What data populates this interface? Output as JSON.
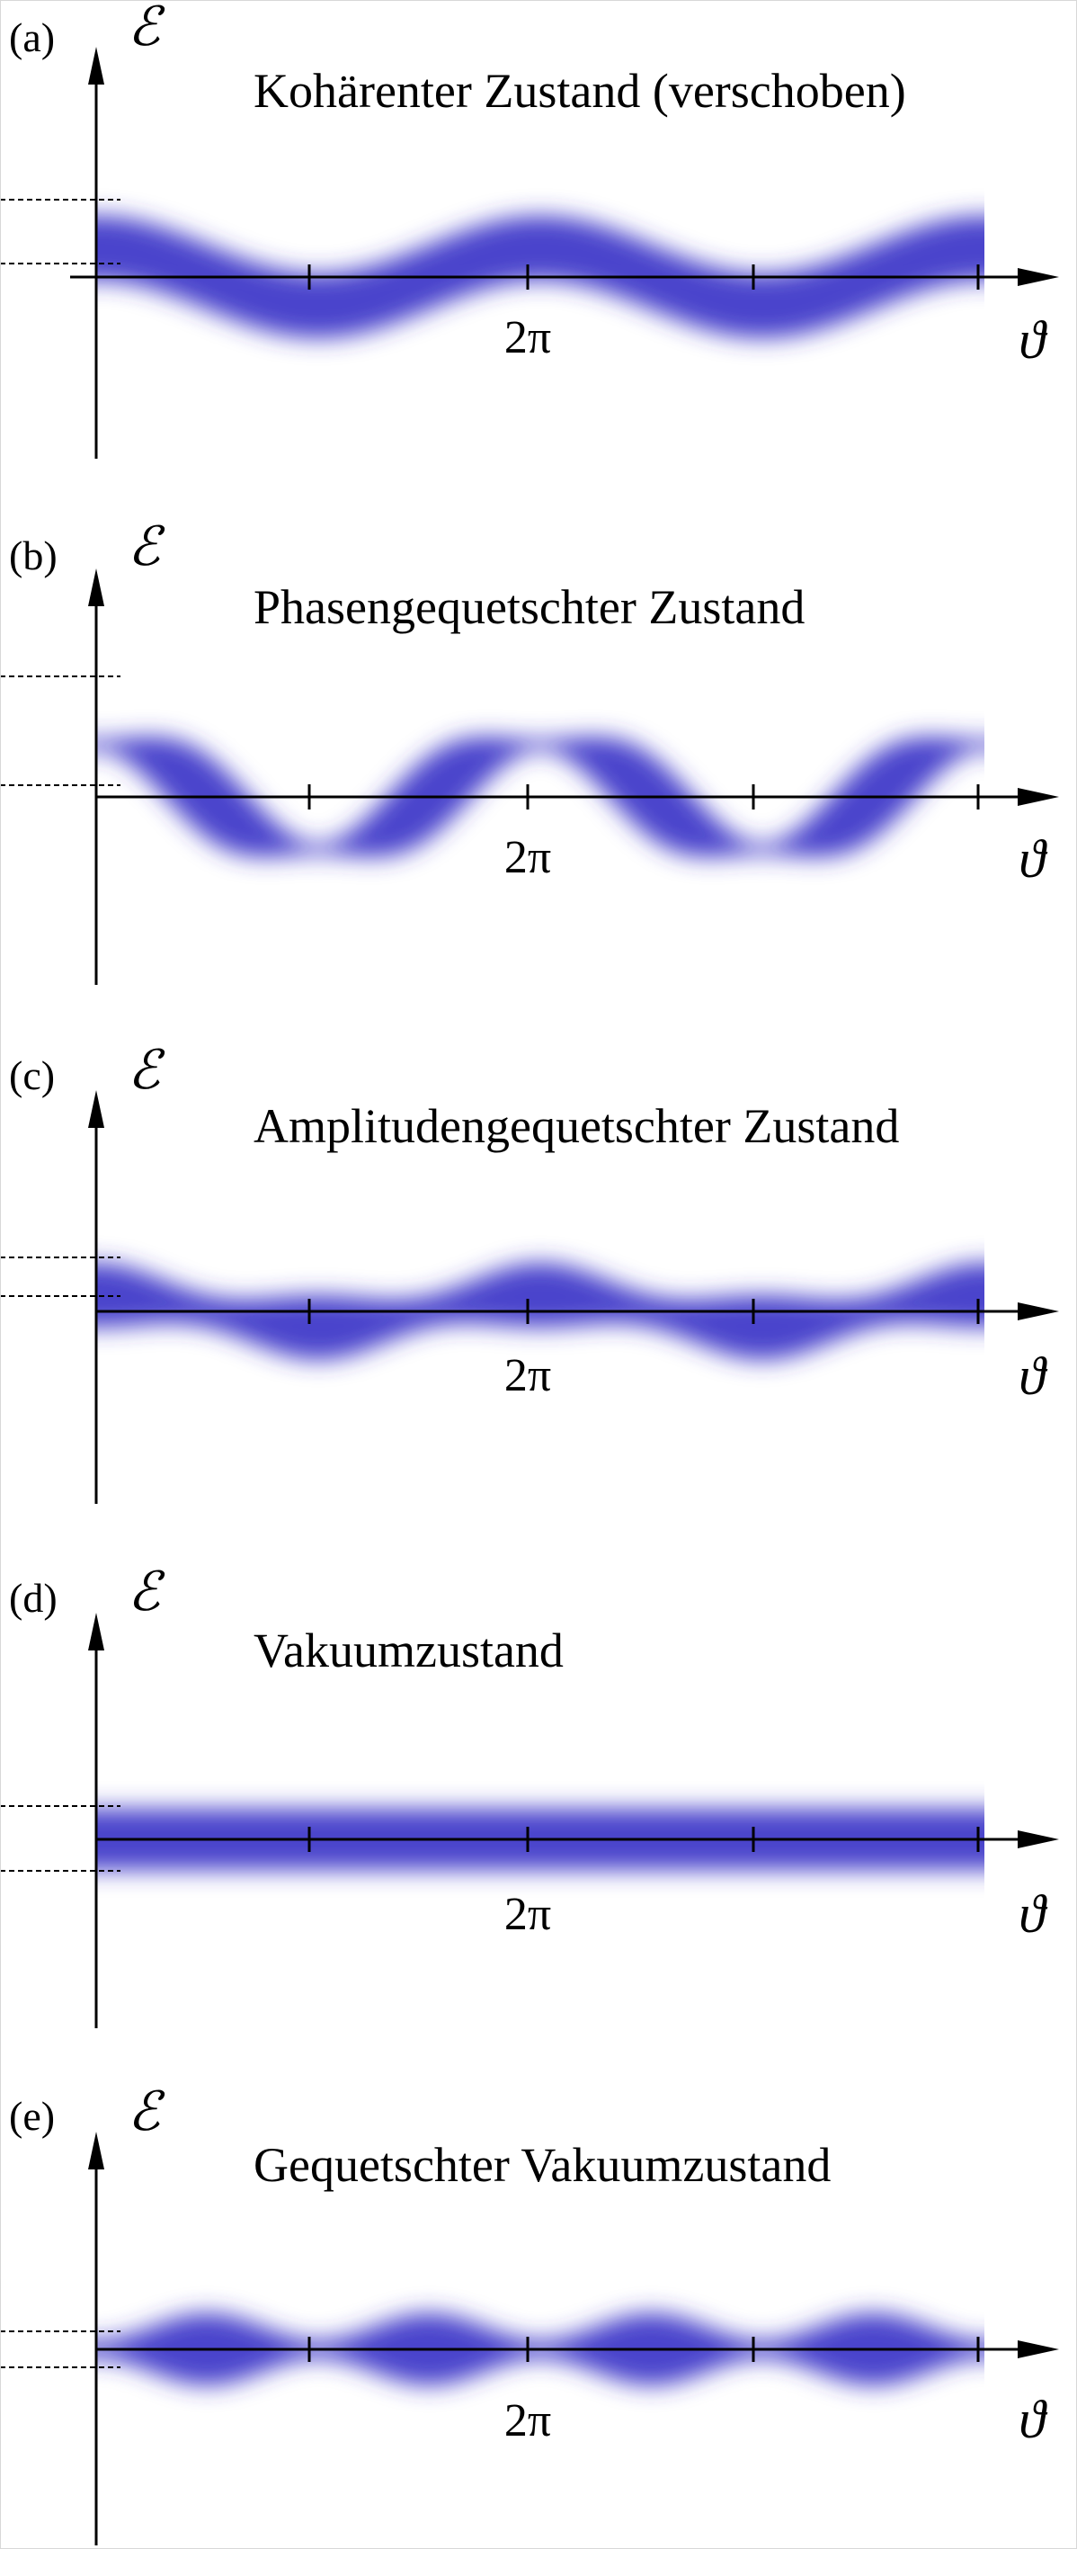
{
  "colors": {
    "band": "#3a33c8",
    "axis": "#000000"
  },
  "panels": [
    {
      "id": "a",
      "label": "(a)",
      "title": "Kohärenter Zustand (verschoben)",
      "y_symbol": "ℰ",
      "x_symbol": "ϑ",
      "tick_label": "2π"
    },
    {
      "id": "b",
      "label": "(b)",
      "title": "Phasengequetschter Zustand",
      "y_symbol": "ℰ",
      "x_symbol": "ϑ",
      "tick_label": "2π"
    },
    {
      "id": "c",
      "label": "(c)",
      "title": "Amplitudengequetschter Zustand",
      "y_symbol": "ℰ",
      "x_symbol": "ϑ",
      "tick_label": "2π"
    },
    {
      "id": "d",
      "label": "(d)",
      "title": "Vakuumzustand",
      "y_symbol": "ℰ",
      "x_symbol": "ϑ",
      "tick_label": "2π"
    },
    {
      "id": "e",
      "label": "(e)",
      "title": "Gequetschter Vakuumzustand",
      "y_symbol": "ℰ",
      "x_symbol": "ϑ",
      "tick_label": "2π"
    }
  ]
}
